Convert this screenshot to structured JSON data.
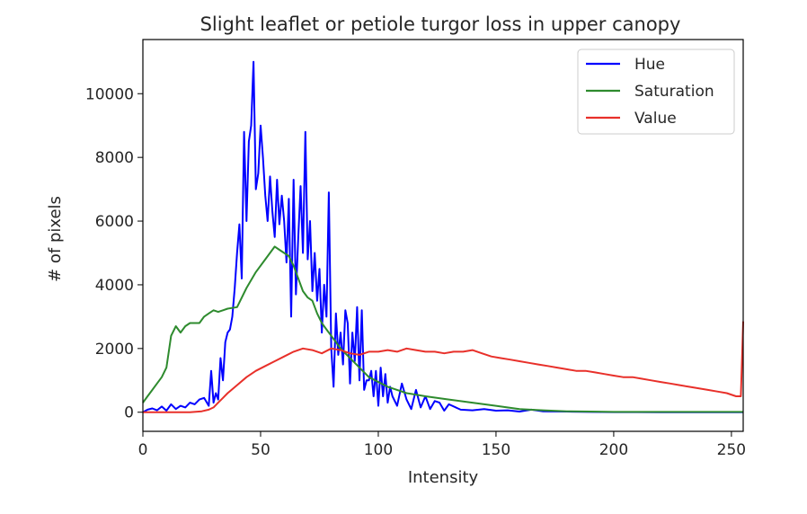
{
  "chart_data": {
    "type": "line",
    "title": "Slight leaflet or petiole turgor loss in upper canopy",
    "xlabel": "Intensity",
    "ylabel": "# of pixels",
    "xlim": [
      0,
      255
    ],
    "ylim": [
      -600,
      11700
    ],
    "x_ticks": [
      0,
      50,
      100,
      150,
      200,
      250
    ],
    "y_ticks": [
      0,
      2000,
      4000,
      6000,
      8000,
      10000
    ],
    "grid": false,
    "legend_position": "upper right",
    "series": [
      {
        "name": "Hue",
        "color": "#0000ff",
        "x": [
          0,
          2,
          4,
          6,
          8,
          10,
          12,
          14,
          16,
          18,
          20,
          22,
          24,
          26,
          28,
          29,
          30,
          31,
          32,
          33,
          34,
          35,
          36,
          37,
          38,
          39,
          40,
          41,
          42,
          43,
          44,
          45,
          46,
          47,
          48,
          49,
          50,
          51,
          52,
          53,
          54,
          55,
          56,
          57,
          58,
          59,
          60,
          61,
          62,
          63,
          64,
          65,
          66,
          67,
          68,
          69,
          70,
          71,
          72,
          73,
          74,
          75,
          76,
          77,
          78,
          79,
          80,
          81,
          82,
          83,
          84,
          85,
          86,
          87,
          88,
          89,
          90,
          91,
          92,
          93,
          94,
          95,
          96,
          97,
          98,
          99,
          100,
          101,
          102,
          103,
          104,
          105,
          106,
          108,
          110,
          112,
          114,
          116,
          118,
          120,
          122,
          124,
          126,
          128,
          130,
          135,
          140,
          145,
          150,
          155,
          160,
          165,
          170,
          180,
          190,
          200,
          210,
          220,
          230,
          240,
          250,
          255
        ],
        "y": [
          0,
          80,
          120,
          60,
          180,
          50,
          250,
          100,
          200,
          150,
          300,
          250,
          400,
          450,
          200,
          1300,
          300,
          600,
          400,
          1700,
          1000,
          2200,
          2500,
          2600,
          3000,
          3900,
          5000,
          5900,
          4200,
          8800,
          6000,
          8500,
          9000,
          11000,
          7000,
          7500,
          9000,
          8000,
          6800,
          6000,
          7400,
          6300,
          5500,
          7300,
          5900,
          6800,
          6000,
          4700,
          6700,
          3000,
          7300,
          3700,
          5500,
          7100,
          5000,
          8800,
          4800,
          6000,
          3800,
          5000,
          3500,
          4500,
          2500,
          4000,
          3000,
          6900,
          2000,
          800,
          3100,
          1800,
          2500,
          1500,
          3200,
          2800,
          900,
          2500,
          1600,
          3300,
          1000,
          3200,
          700,
          1000,
          1000,
          1300,
          500,
          1300,
          200,
          1400,
          500,
          1200,
          300,
          800,
          500,
          200,
          900,
          400,
          100,
          700,
          150,
          500,
          100,
          350,
          300,
          50,
          250,
          80,
          60,
          100,
          50,
          60,
          20,
          80,
          30,
          20,
          10,
          5,
          5,
          0,
          0,
          0,
          0,
          0
        ]
      },
      {
        "name": "Saturation",
        "color": "#2e8b2e",
        "x": [
          0,
          2,
          4,
          6,
          8,
          10,
          12,
          14,
          16,
          18,
          20,
          24,
          26,
          28,
          30,
          32,
          34,
          36,
          40,
          44,
          48,
          52,
          56,
          58,
          60,
          62,
          64,
          66,
          68,
          70,
          72,
          74,
          76,
          78,
          80,
          84,
          88,
          92,
          96,
          100,
          104,
          108,
          112,
          116,
          120,
          130,
          140,
          150,
          160,
          170,
          180,
          190,
          200,
          210,
          220,
          230,
          240,
          250,
          255
        ],
        "y": [
          300,
          500,
          700,
          900,
          1100,
          1400,
          2400,
          2700,
          2500,
          2700,
          2800,
          2800,
          3000,
          3100,
          3200,
          3150,
          3200,
          3250,
          3300,
          3900,
          4400,
          4800,
          5200,
          5100,
          5000,
          4900,
          4600,
          4200,
          3800,
          3600,
          3500,
          3100,
          2800,
          2600,
          2400,
          2000,
          1700,
          1400,
          1100,
          950,
          800,
          700,
          600,
          550,
          500,
          400,
          300,
          200,
          100,
          60,
          30,
          20,
          10,
          10,
          10,
          10,
          10,
          10,
          10
        ],
        "y_note": ""
      },
      {
        "name": "Value",
        "color": "#e8302a",
        "x": [
          0,
          5,
          10,
          15,
          20,
          25,
          28,
          30,
          32,
          34,
          36,
          40,
          44,
          48,
          52,
          56,
          60,
          64,
          68,
          72,
          76,
          80,
          84,
          88,
          92,
          96,
          100,
          104,
          108,
          112,
          116,
          120,
          124,
          128,
          132,
          136,
          140,
          144,
          148,
          152,
          156,
          160,
          164,
          168,
          172,
          176,
          180,
          184,
          188,
          192,
          196,
          200,
          204,
          208,
          212,
          216,
          220,
          224,
          228,
          232,
          236,
          240,
          244,
          248,
          252,
          254,
          255
        ],
        "y": [
          0,
          0,
          0,
          0,
          0,
          30,
          80,
          150,
          300,
          450,
          600,
          850,
          1100,
          1300,
          1450,
          1600,
          1750,
          1900,
          2000,
          1950,
          1850,
          2000,
          1950,
          1850,
          1800,
          1900,
          1900,
          1950,
          1900,
          2000,
          1950,
          1900,
          1900,
          1850,
          1900,
          1900,
          1950,
          1850,
          1750,
          1700,
          1650,
          1600,
          1550,
          1500,
          1450,
          1400,
          1350,
          1300,
          1300,
          1250,
          1200,
          1150,
          1100,
          1100,
          1050,
          1000,
          950,
          900,
          850,
          800,
          750,
          700,
          650,
          600,
          500,
          500,
          2850
        ]
      }
    ]
  }
}
